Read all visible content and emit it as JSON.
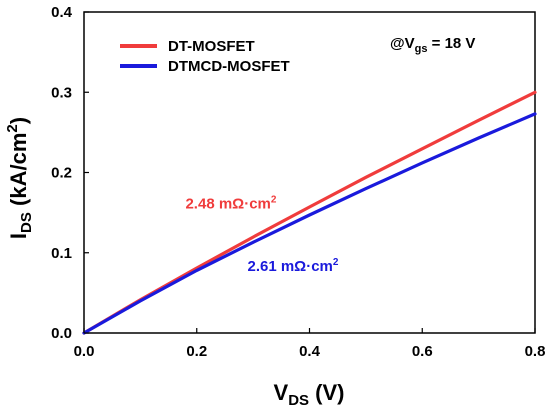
{
  "chart_data": {
    "type": "line",
    "xlim": [
      0,
      0.8
    ],
    "ylim": [
      0,
      0.4
    ],
    "x_ticks": [
      0.0,
      0.2,
      0.4,
      0.6,
      0.8
    ],
    "y_ticks": [
      0.0,
      0.1,
      0.2,
      0.3,
      0.4
    ],
    "x_tick_labels": [
      "0.0",
      "0.2",
      "0.4",
      "0.6",
      "0.8"
    ],
    "y_tick_labels": [
      "0.0",
      "0.1",
      "0.2",
      "0.3",
      "0.4"
    ],
    "xlabel": {
      "main": "V",
      "sub": "DS",
      "rest": " (V)"
    },
    "ylabel": {
      "main": "I",
      "sub": "DS",
      "rest": " (kA/cm",
      "sup": "2",
      "end": ")"
    },
    "grid": false,
    "legend_position": "top-left",
    "condition": {
      "main": "@V",
      "sub": "gs",
      "rest": " = 18 V"
    },
    "series": [
      {
        "name": "DT-MOSFET",
        "color": "#f03c3c",
        "x": [
          0,
          0.1,
          0.2,
          0.3,
          0.4,
          0.5,
          0.6,
          0.7,
          0.8
        ],
        "y": [
          0,
          0.0415,
          0.081,
          0.1195,
          0.157,
          0.194,
          0.2295,
          0.265,
          0.3
        ],
        "annotation": {
          "text": "2.48 mΩ·cm",
          "sup": "2",
          "at_x": 0.18,
          "at_y": 0.155
        }
      },
      {
        "name": "DTMCD-MOSFET",
        "color": "#1a1adc",
        "x": [
          0,
          0.1,
          0.2,
          0.3,
          0.4,
          0.5,
          0.6,
          0.7,
          0.8
        ],
        "y": [
          0,
          0.04,
          0.078,
          0.113,
          0.147,
          0.18,
          0.212,
          0.243,
          0.273
        ],
        "annotation": {
          "text": "2.61 mΩ·cm",
          "sup": "2",
          "at_x": 0.29,
          "at_y": 0.077
        }
      }
    ]
  }
}
